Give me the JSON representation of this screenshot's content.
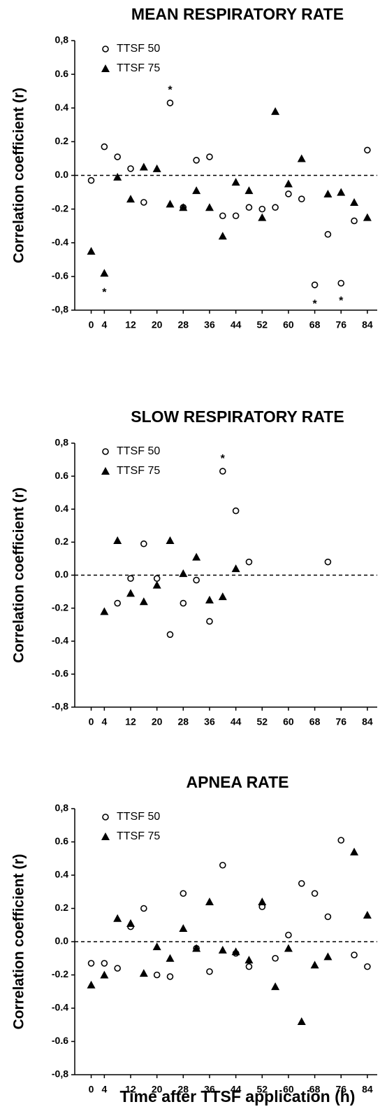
{
  "chart_data": [
    {
      "type": "scatter",
      "title": "MEAN RESPIRATORY RATE",
      "ylabel": "Correlation coefficient (r)",
      "x": [
        0,
        4,
        8,
        12,
        16,
        20,
        24,
        28,
        32,
        36,
        40,
        44,
        48,
        52,
        56,
        60,
        64,
        68,
        72,
        76,
        80,
        84
      ],
      "series": [
        {
          "name": "TTSF 50",
          "marker": "circle",
          "color": "#000000",
          "values": [
            -0.03,
            0.17,
            0.11,
            0.04,
            -0.16,
            null,
            0.43,
            -0.19,
            0.09,
            0.11,
            -0.24,
            -0.24,
            -0.19,
            -0.2,
            -0.19,
            -0.11,
            -0.14,
            -0.65,
            -0.35,
            -0.64,
            -0.27,
            0.15
          ]
        },
        {
          "name": "TTSF 75",
          "marker": "triangle",
          "color": "#000000",
          "values": [
            -0.45,
            -0.58,
            -0.01,
            -0.14,
            0.05,
            0.04,
            -0.17,
            -0.19,
            -0.09,
            -0.19,
            -0.36,
            -0.04,
            -0.09,
            -0.25,
            0.38,
            -0.05,
            0.1,
            null,
            -0.11,
            -0.1,
            -0.16,
            -0.25
          ]
        }
      ],
      "annotations": [
        {
          "text": "*",
          "x": 24,
          "y": 0.52
        },
        {
          "text": "*",
          "x": 4,
          "y": -0.68
        },
        {
          "text": "*",
          "x": 68,
          "y": -0.75
        },
        {
          "text": "*",
          "x": 76,
          "y": -0.73
        }
      ],
      "xlim": [
        -5,
        87
      ],
      "xticks": [
        0,
        4,
        12,
        20,
        28,
        36,
        44,
        52,
        60,
        68,
        76,
        84
      ],
      "ylim": [
        -0.8,
        0.8
      ],
      "yticks": [
        {
          "value": -0.8,
          "label": "-0,8"
        },
        -0.6,
        -0.4,
        -0.2,
        {
          "value": 0,
          "label": "0.0"
        },
        0.2,
        0.4,
        0.6,
        {
          "value": 0.8,
          "label": "0,8"
        }
      ],
      "zero_line": true,
      "legend": "upper left"
    },
    {
      "type": "scatter",
      "title": "SLOW RESPIRATORY RATE",
      "ylabel": "Correlation coefficient (r)",
      "x": [
        4,
        8,
        12,
        16,
        20,
        24,
        28,
        32,
        36,
        40,
        44,
        48,
        72
      ],
      "series": [
        {
          "name": "TTSF 50",
          "marker": "circle",
          "color": "#000000",
          "values": [
            null,
            -0.17,
            -0.02,
            0.19,
            -0.02,
            -0.36,
            -0.17,
            -0.03,
            -0.28,
            0.63,
            0.39,
            0.08,
            0.08
          ]
        },
        {
          "name": "TTSF 75",
          "marker": "triangle",
          "color": "#000000",
          "values": [
            -0.22,
            0.21,
            -0.11,
            -0.16,
            -0.06,
            0.21,
            0.01,
            0.11,
            -0.15,
            -0.13,
            0.04,
            null,
            null
          ]
        }
      ],
      "annotations": [
        {
          "text": "*",
          "x": 40,
          "y": 0.72
        }
      ],
      "xlim": [
        -5,
        87
      ],
      "xticks": [
        0,
        4,
        12,
        20,
        28,
        36,
        44,
        52,
        60,
        68,
        76,
        84
      ],
      "ylim": [
        -0.8,
        0.8
      ],
      "yticks": [
        {
          "value": -0.8,
          "label": "-0,8"
        },
        -0.6,
        -0.4,
        -0.2,
        {
          "value": 0,
          "label": "0.0"
        },
        0.2,
        0.4,
        0.6,
        {
          "value": 0.8,
          "label": "0,8"
        }
      ],
      "zero_line": true,
      "legend": "upper left"
    },
    {
      "type": "scatter",
      "title": "APNEA RATE",
      "ylabel": "Correlation coefficient (r)",
      "xlabel": "Time after TTSF application (h)",
      "x": [
        0,
        4,
        8,
        12,
        16,
        20,
        24,
        28,
        32,
        36,
        40,
        44,
        48,
        52,
        56,
        60,
        64,
        68,
        72,
        76,
        80,
        84
      ],
      "series": [
        {
          "name": "TTSF 50",
          "marker": "circle",
          "color": "#000000",
          "values": [
            -0.13,
            -0.13,
            -0.16,
            0.09,
            0.2,
            -0.2,
            -0.21,
            0.29,
            -0.04,
            -0.18,
            0.46,
            -0.07,
            -0.15,
            0.21,
            -0.1,
            0.04,
            0.35,
            0.29,
            0.15,
            0.61,
            -0.08,
            -0.15
          ]
        },
        {
          "name": "TTSF 75",
          "marker": "triangle",
          "color": "#000000",
          "values": [
            -0.26,
            -0.2,
            0.14,
            0.11,
            -0.19,
            -0.03,
            -0.1,
            0.08,
            -0.04,
            0.24,
            -0.05,
            -0.06,
            -0.11,
            0.24,
            -0.27,
            -0.04,
            -0.48,
            -0.14,
            -0.09,
            null,
            0.54,
            0.16
          ]
        }
      ],
      "xlim": [
        -5,
        87
      ],
      "xticks": [
        0,
        4,
        12,
        20,
        28,
        36,
        44,
        52,
        60,
        68,
        76,
        84
      ],
      "ylim": [
        -0.8,
        0.8
      ],
      "yticks": [
        {
          "value": -0.8,
          "label": "-0,8"
        },
        -0.6,
        -0.4,
        -0.2,
        {
          "value": 0,
          "label": "0.0"
        },
        0.2,
        0.4,
        0.6,
        {
          "value": 0.8,
          "label": "0,8"
        }
      ],
      "zero_line": true,
      "legend": "upper left"
    }
  ]
}
